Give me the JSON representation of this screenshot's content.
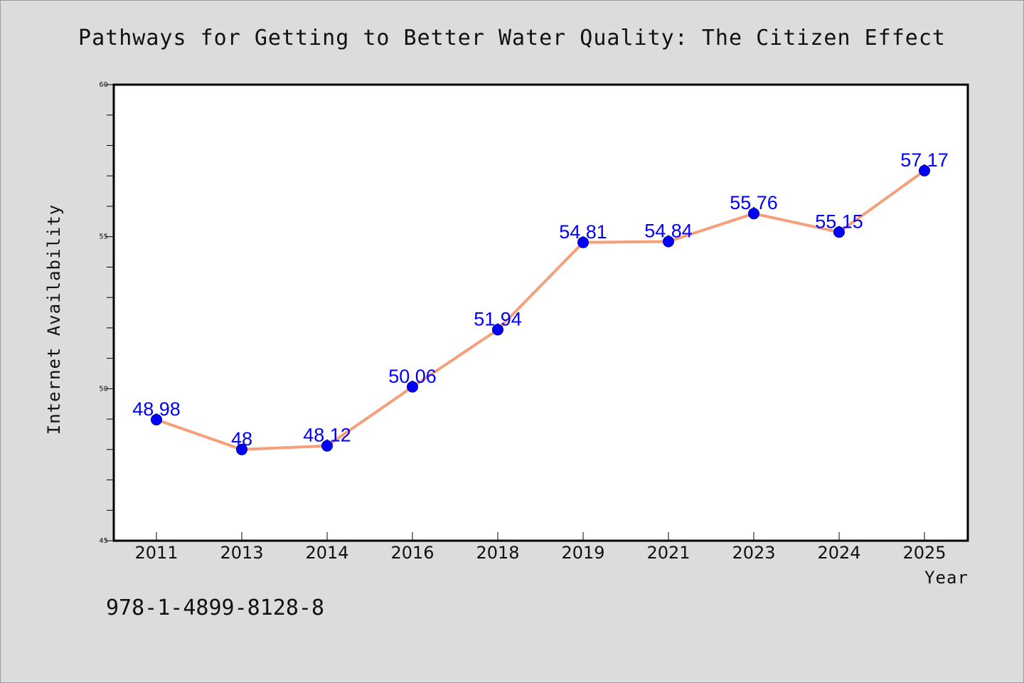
{
  "chart_data": {
    "type": "line",
    "title": "Pathways for Getting to Better Water Quality: The Citizen Effect",
    "xlabel": "Year",
    "ylabel": "Internet Availability",
    "categories": [
      "2011",
      "2013",
      "2014",
      "2016",
      "2018",
      "2019",
      "2021",
      "2023",
      "2024",
      "2025"
    ],
    "series": [
      {
        "values": [
          48.98,
          48,
          48.12,
          50.06,
          51.94,
          54.81,
          54.84,
          55.76,
          55.15,
          57.17
        ],
        "labels": [
          "48.98",
          "48",
          "48.12",
          "50.06",
          "51.94",
          "54.81",
          "54.84",
          "55.76",
          "55.15",
          "57.17"
        ]
      }
    ],
    "ylim": [
      45,
      60
    ],
    "y_major_ticks": [
      "45",
      "50",
      "55",
      "60"
    ],
    "grid": false,
    "colors": {
      "line": "#f4a07a",
      "marker": "#0000ff",
      "label": "#0000ff",
      "background": "#dcdcdc",
      "plot_area": "#ffffff"
    }
  },
  "footer": {
    "isbn": "978-1-4899-8128-8"
  }
}
